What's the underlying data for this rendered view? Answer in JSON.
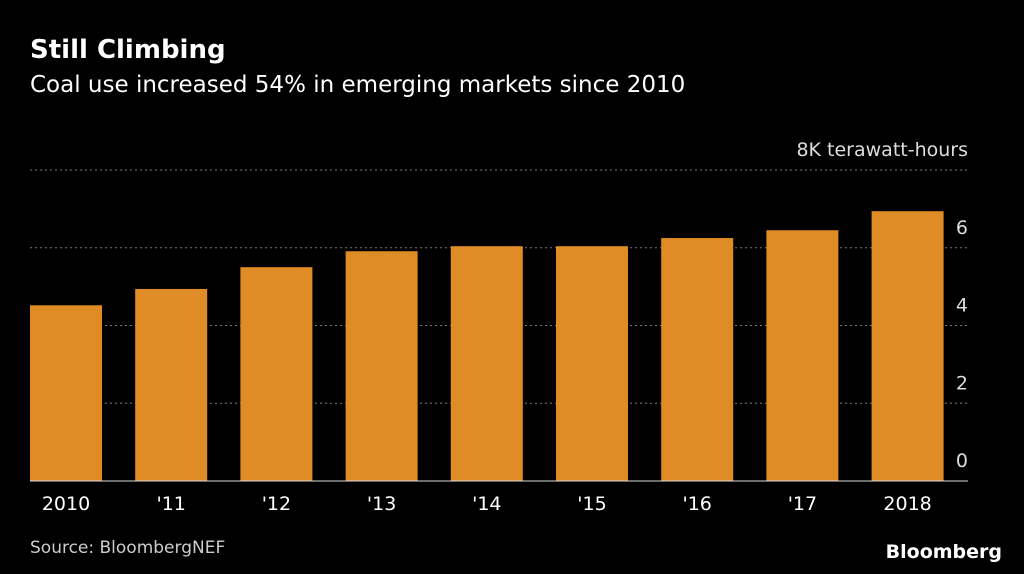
{
  "chart_data": {
    "type": "bar",
    "title": "Still Climbing",
    "subtitle": "Coal use increased 54% in emerging markets since 2010",
    "categories": [
      "2010",
      "'11",
      "'12",
      "'13",
      "'14",
      "'15",
      "'16",
      "'17",
      "2018"
    ],
    "values": [
      4.52,
      4.94,
      5.5,
      5.91,
      6.04,
      6.04,
      6.25,
      6.45,
      6.94
    ],
    "color": "#e08c26",
    "ylim": [
      0,
      8
    ],
    "yticks": [
      0,
      2,
      4,
      6,
      {
        "value": 8,
        "label": "8K terawatt-hours"
      }
    ],
    "grid": true,
    "source": "Source: BloombergNEF",
    "brand": "Bloomberg"
  }
}
